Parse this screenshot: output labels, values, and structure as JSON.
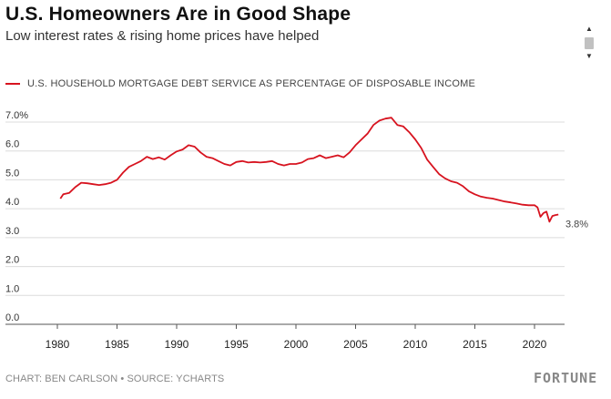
{
  "header": {
    "title": "U.S. Homeowners Are in Good Shape",
    "subtitle": "Low interest rates & rising home prices have helped"
  },
  "footer": {
    "credit": "CHART: BEN CARLSON • SOURCE: YCHARTS",
    "brand": "FORTUNE"
  },
  "chart_data": {
    "type": "line",
    "title": "U.S. Homeowners Are in Good Shape",
    "subtitle": "Low interest rates & rising home prices have helped",
    "xlabel": "",
    "ylabel": "",
    "xlim": [
      1980,
      2022.5
    ],
    "ylim": [
      0,
      7
    ],
    "x_ticks": [
      "1980",
      "1985",
      "1990",
      "1995",
      "2000",
      "2005",
      "2010",
      "2015",
      "2020"
    ],
    "y_ticks": [
      "0.0",
      "1.0",
      "2.0",
      "3.0",
      "4.0",
      "5.0",
      "6.0",
      "7.0%"
    ],
    "grid": true,
    "legend_position": "top-left",
    "end_label": "3.8%",
    "series": [
      {
        "name": "U.S. HOUSEHOLD MORTGAGE DEBT SERVICE AS PERCENTAGE OF DISPOSABLE INCOME",
        "color": "#d7131f",
        "x": [
          1980.25,
          1980.5,
          1981.0,
          1981.5,
          1982.0,
          1982.5,
          1983.0,
          1983.5,
          1984.0,
          1984.5,
          1985.0,
          1985.5,
          1986.0,
          1986.5,
          1987.0,
          1987.5,
          1988.0,
          1988.5,
          1989.0,
          1989.5,
          1990.0,
          1990.5,
          1991.0,
          1991.5,
          1992.0,
          1992.5,
          1993.0,
          1993.5,
          1994.0,
          1994.5,
          1995.0,
          1995.5,
          1996.0,
          1996.5,
          1997.0,
          1997.5,
          1998.0,
          1998.5,
          1999.0,
          1999.5,
          2000.0,
          2000.5,
          2001.0,
          2001.5,
          2002.0,
          2002.5,
          2003.0,
          2003.5,
          2004.0,
          2004.5,
          2005.0,
          2005.5,
          2006.0,
          2006.5,
          2007.0,
          2007.5,
          2008.0,
          2008.5,
          2009.0,
          2009.5,
          2010.0,
          2010.5,
          2011.0,
          2011.5,
          2012.0,
          2012.5,
          2013.0,
          2013.5,
          2014.0,
          2014.5,
          2015.0,
          2015.5,
          2016.0,
          2016.5,
          2017.0,
          2017.5,
          2018.0,
          2018.5,
          2019.0,
          2019.5,
          2020.0,
          2020.25,
          2020.5,
          2020.75,
          2021.0,
          2021.25,
          2021.5,
          2021.75,
          2022.0
        ],
        "values": [
          4.35,
          4.5,
          4.55,
          4.75,
          4.9,
          4.88,
          4.85,
          4.82,
          4.85,
          4.9,
          5.0,
          5.25,
          5.45,
          5.55,
          5.65,
          5.8,
          5.72,
          5.78,
          5.7,
          5.85,
          5.98,
          6.05,
          6.2,
          6.15,
          5.95,
          5.8,
          5.75,
          5.65,
          5.55,
          5.5,
          5.62,
          5.65,
          5.6,
          5.62,
          5.6,
          5.62,
          5.65,
          5.55,
          5.5,
          5.55,
          5.55,
          5.6,
          5.72,
          5.75,
          5.85,
          5.75,
          5.8,
          5.85,
          5.78,
          5.95,
          6.2,
          6.4,
          6.6,
          6.9,
          7.05,
          7.12,
          7.15,
          6.9,
          6.85,
          6.65,
          6.4,
          6.1,
          5.7,
          5.45,
          5.2,
          5.05,
          4.95,
          4.9,
          4.78,
          4.6,
          4.5,
          4.42,
          4.38,
          4.35,
          4.3,
          4.25,
          4.22,
          4.18,
          4.14,
          4.12,
          4.12,
          4.05,
          3.72,
          3.85,
          3.9,
          3.55,
          3.75,
          3.78,
          3.8
        ]
      }
    ]
  }
}
